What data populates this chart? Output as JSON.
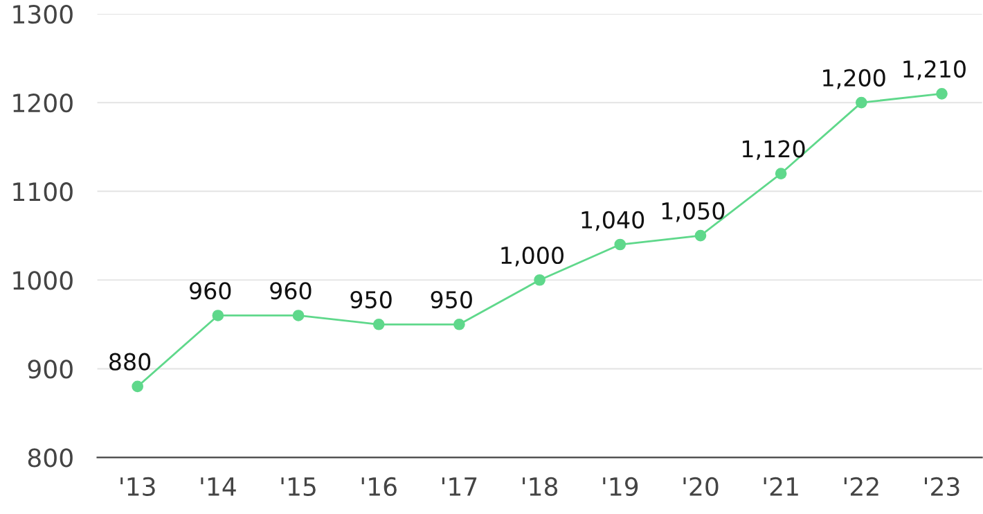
{
  "chart_data": {
    "type": "line",
    "categories": [
      "'13",
      "'14",
      "'15",
      "'16",
      "'17",
      "'18",
      "'19",
      "'20",
      "'21",
      "'22",
      "'23"
    ],
    "series": [
      {
        "color": "#5fd88b",
        "values": [
          880,
          960,
          960,
          950,
          950,
          1000,
          1040,
          1050,
          1120,
          1200,
          1210
        ],
        "value_labels": [
          "880",
          "960",
          "960",
          "950",
          "950",
          "1,000",
          "1,040",
          "1,050",
          "1,120",
          "1,200",
          "1,210"
        ]
      }
    ],
    "ylim": [
      800,
      1300
    ],
    "yticks": [
      800,
      900,
      1000,
      1100,
      1200,
      1300
    ],
    "grid": "y",
    "marker": "circle",
    "line_style": "solid",
    "legend": false
  }
}
